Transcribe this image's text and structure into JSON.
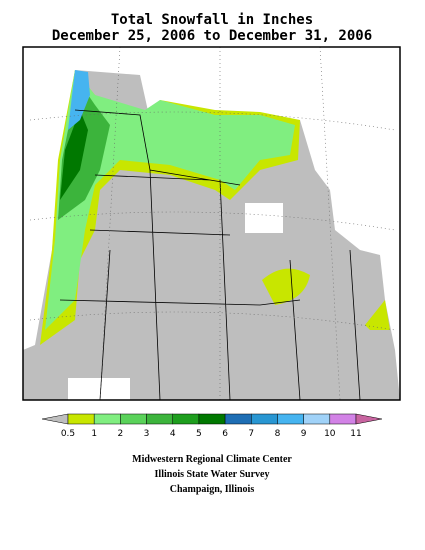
{
  "header": {
    "title": "Total Snowfall in Inches",
    "subtitle": "December 25, 2006 to December 31, 2006"
  },
  "legend": {
    "labels": [
      "0.5",
      "1",
      "2",
      "3",
      "4",
      "5",
      "6",
      "7",
      "8",
      "9",
      "10",
      "11"
    ],
    "colors": [
      "#bebebe",
      "#c8e600",
      "#80ee80",
      "#5ad25a",
      "#3cb43c",
      "#1e9e1e",
      "#007800",
      "#1e6eb4",
      "#2896d2",
      "#46b4f0",
      "#a0d2f8",
      "#d282e6",
      "#c864a0"
    ]
  },
  "credits": [
    "Midwestern Regional Climate Center",
    "Illinois State Water Survey",
    "Champaign, Illinois"
  ]
}
